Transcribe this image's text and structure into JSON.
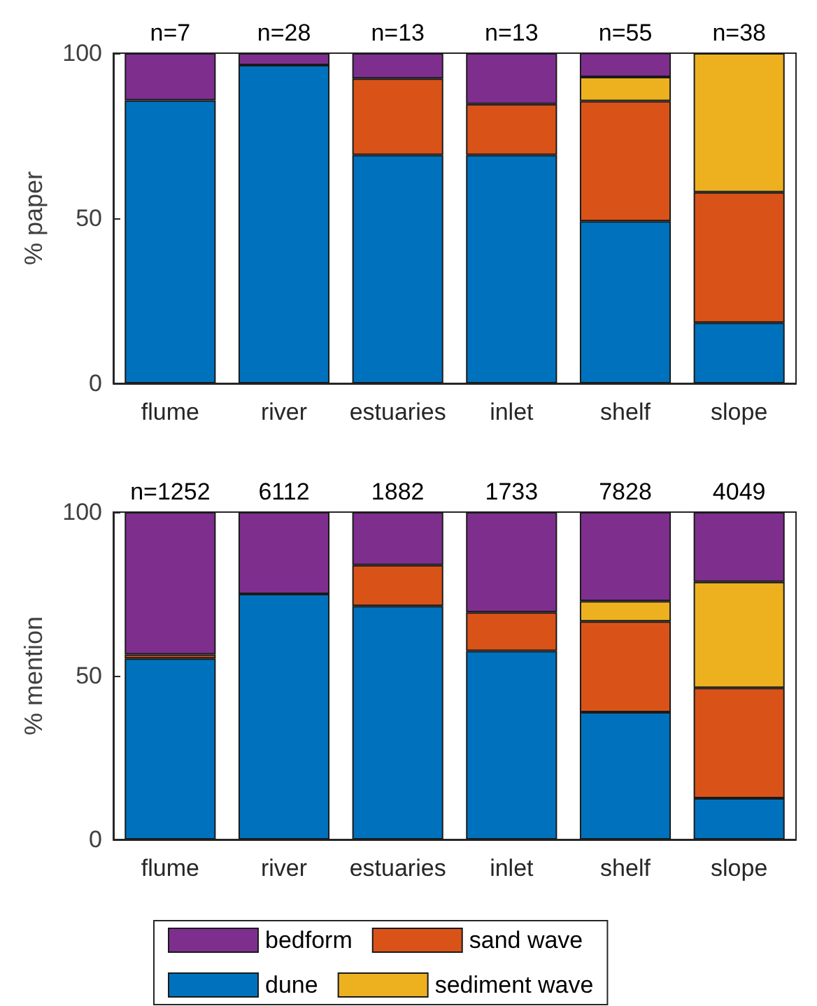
{
  "chart_data": [
    {
      "type": "bar",
      "stacked": true,
      "ylabel": "% paper",
      "categories": [
        "flume",
        "river",
        "estuaries",
        "inlet",
        "shelf",
        "slope"
      ],
      "ylim": [
        0,
        100
      ],
      "yticks": [
        0,
        50,
        100
      ],
      "grid": false,
      "legend": false,
      "series": [
        {
          "color": "#0072bd",
          "values": [
            85.7,
            96.4,
            69.2,
            69.2,
            49.1,
            18.4
          ]
        },
        {
          "color": "#d95319",
          "values": [
            null,
            null,
            23.1,
            15.4,
            36.4,
            39.5
          ]
        },
        {
          "color": "#edb120",
          "values": [
            null,
            null,
            null,
            null,
            7.3,
            42.1
          ]
        },
        {
          "color": "#7e2f8e",
          "values": [
            14.3,
            3.6,
            7.7,
            15.4,
            7.3,
            null
          ]
        }
      ],
      "annotations": [
        "n=7",
        "n=28",
        "n=13",
        "n=13",
        "n=55",
        "n=38"
      ]
    },
    {
      "type": "bar",
      "stacked": true,
      "ylabel": "% mention",
      "categories": [
        "flume",
        "river",
        "estuaries",
        "inlet",
        "shelf",
        "slope"
      ],
      "ylim": [
        0,
        100
      ],
      "yticks": [
        0,
        50,
        100
      ],
      "grid": false,
      "legend": "bottom",
      "series": [
        {
          "name": "dune",
          "color": "#0072bd",
          "values": [
            55.3,
            75,
            71.3,
            57.6,
            38.9,
            12.6
          ]
        },
        {
          "name": "sand wave",
          "color": "#d95319",
          "values": [
            1.2,
            null,
            12.5,
            11.8,
            27.7,
            33.7
          ]
        },
        {
          "name": "sediment wave",
          "color": "#edb120",
          "values": [
            null,
            null,
            null,
            null,
            6.2,
            32.4
          ]
        },
        {
          "name": "bedform",
          "color": "#7e2f8e",
          "values": [
            43.5,
            25,
            16.2,
            30.6,
            27.2,
            21.3
          ]
        }
      ],
      "annotations": [
        "n=1252",
        "6112",
        "1882",
        "1733",
        "7828",
        "4049"
      ]
    }
  ]
}
